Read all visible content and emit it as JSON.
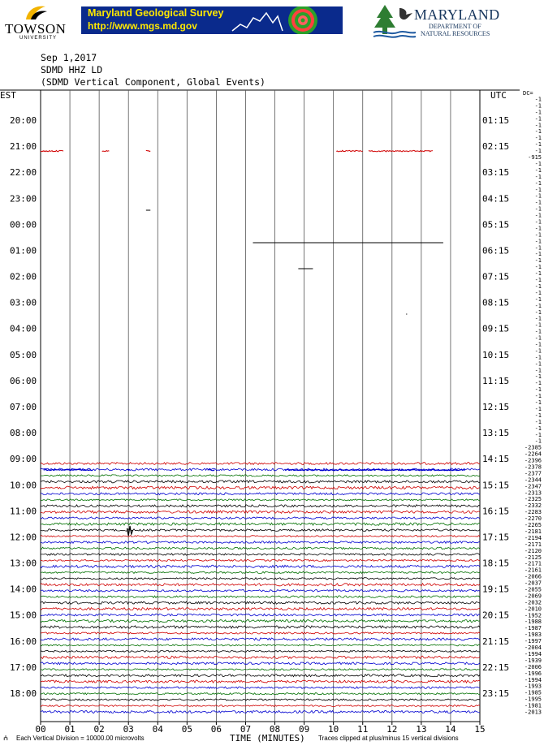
{
  "header": {
    "towson_name": "TOWSON",
    "towson_sub": "UNIVERSITY",
    "mgs_title": "Maryland Geological Survey",
    "mgs_url": "http://www.mgs.md.gov",
    "dnr_name": "MARYLAND",
    "dnr_line1": "DEPARTMENT OF",
    "dnr_line2": "NATURAL RESOURCES"
  },
  "chart_data": {
    "type": "line",
    "date": "Sep 1,2017",
    "station": "SDMD HHZ LD",
    "component": "(SDMD Vertical Component, Global Events)",
    "left_zone": "EST",
    "right_zone": "UTC",
    "xlabel": "TIME (MINUTES)",
    "x_ticks": [
      "00",
      "01",
      "02",
      "03",
      "04",
      "05",
      "06",
      "07",
      "08",
      "09",
      "10",
      "11",
      "12",
      "13",
      "14",
      "15"
    ],
    "xlim": [
      0,
      15
    ],
    "left_labels": [
      "20:00",
      "21:00",
      "22:00",
      "23:00",
      "00:00",
      "01:00",
      "02:00",
      "03:00",
      "04:00",
      "05:00",
      "06:00",
      "07:00",
      "08:00",
      "09:00",
      "10:00",
      "11:00",
      "12:00",
      "13:00",
      "14:00",
      "15:00",
      "16:00",
      "17:00",
      "18:00"
    ],
    "right_labels": [
      "01:15",
      "02:15",
      "03:15",
      "04:15",
      "05:15",
      "06:15",
      "07:15",
      "08:15",
      "09:15",
      "10:15",
      "11:15",
      "12:15",
      "13:15",
      "14:15",
      "15:15",
      "16:15",
      "17:15",
      "18:15",
      "19:15",
      "20:15",
      "21:15",
      "22:15",
      "23:15"
    ],
    "dc_label": "DC=",
    "dc_offsets": [
      "-1",
      "-1",
      "-1",
      "-1",
      "-1",
      "-1",
      "-1",
      "-1",
      "-1",
      "-915",
      "-1",
      "-1",
      "-1",
      "-1",
      "-1",
      "-1",
      "-1",
      "-1",
      "-1",
      "-1",
      "-1",
      "-1",
      "-1",
      "-1",
      "-1",
      "-1",
      "-1",
      "-1",
      "-1",
      "-1",
      "-1",
      "-1",
      "-1",
      "-1",
      "-1",
      "-1",
      "-1",
      "-1",
      "-1",
      "-1",
      "-1",
      "-1",
      "-1",
      "-1",
      "-1",
      "-1",
      "-1",
      "-1",
      "-1",
      "-1",
      "-1",
      "-1",
      "-1",
      "-1",
      "-2385",
      "-2264",
      "-2396",
      "-2378",
      "-2377",
      "-2344",
      "-2347",
      "-2313",
      "-2325",
      "-2332",
      "-2283",
      "-2270",
      "-2265",
      "-2181",
      "-2194",
      "-2171",
      "-2120",
      "-2125",
      "-2171",
      "-2161",
      "-2066",
      "-2037",
      "-2055",
      "-2069",
      "-2032",
      "-2010",
      "-1952",
      "-1988",
      "-1987",
      "-1983",
      "-1997",
      "-2004",
      "-1994",
      "-1939",
      "-2006",
      "-1996",
      "-1994",
      "-1993",
      "-1985",
      "-1995",
      "-1981",
      "-2013"
    ],
    "trace_colors": [
      "#000000",
      "#d00000",
      "#0000d0",
      "#007000"
    ],
    "footer_left": "Each Vertical Division = 10000.00 microvolts",
    "footer_right": "Traces clipped at plus/minus 15 vertical divisions"
  }
}
